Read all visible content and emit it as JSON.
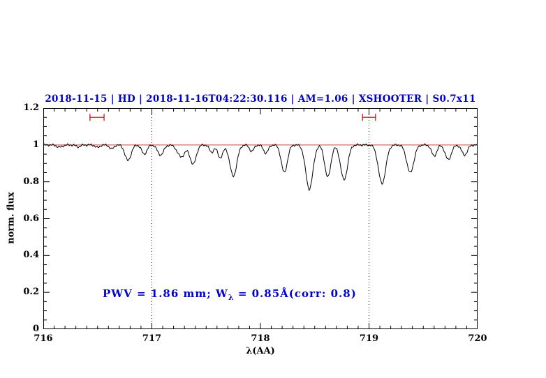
{
  "title": "2018-11-15 | HD | 2018-11-16T04:22:30.116 | AM=1.06 | XSHOOTER | S0.7x11",
  "annotation": {
    "prefix": "PWV = 1.86 mm; W",
    "subscript": "λ",
    "suffix": " = 0.85Å(corr: 0.8)"
  },
  "chart_data": {
    "type": "line",
    "title": "2018-11-15 | HD | 2018-11-16T04:22:30.116 | AM=1.06 | XSHOOTER | S0.7x11",
    "xlabel": "λ(AA)",
    "ylabel": "norm. flux",
    "xlim": [
      716,
      720
    ],
    "ylim": [
      0,
      1.2
    ],
    "xticks": [
      716,
      717,
      718,
      719,
      720
    ],
    "xtick_labels": [
      "716",
      "717",
      "718",
      "719",
      "720"
    ],
    "x_minor_step": 0.1,
    "yticks": [
      0,
      0.2,
      0.4,
      0.6,
      0.8,
      1,
      1.2
    ],
    "ytick_labels": [
      "0",
      "0.2",
      "0.4",
      "0.6",
      "0.8",
      "1",
      "1.2"
    ],
    "y_minor_step": 0.05,
    "grid": "off",
    "legend": "none",
    "line_color": "#000000",
    "continuum_level": 1.0,
    "continuum_color": "#cc4444",
    "marker_color": "#cc0000",
    "title_color": "#0000cc",
    "dotted_guides_x": [
      717,
      719
    ],
    "band_markers": [
      {
        "x_start": 716.43,
        "x_end": 716.56,
        "y": 1.15
      },
      {
        "x_start": 718.94,
        "x_end": 719.06,
        "y": 1.15
      }
    ],
    "noise_amplitude": 0.004,
    "sample_step_A": 0.008,
    "absorption_lines": {
      "columns": [
        "center_A",
        "depth",
        "sigma_A"
      ],
      "rows": [
        [
          716.15,
          0.012,
          0.025
        ],
        [
          716.32,
          0.01,
          0.02
        ],
        [
          716.5,
          0.014,
          0.02
        ],
        [
          716.63,
          0.022,
          0.02
        ],
        [
          716.78,
          0.085,
          0.028
        ],
        [
          716.93,
          0.05,
          0.024
        ],
        [
          717.08,
          0.055,
          0.028
        ],
        [
          717.27,
          0.065,
          0.035
        ],
        [
          717.38,
          0.105,
          0.028
        ],
        [
          717.55,
          0.04,
          0.02
        ],
        [
          717.63,
          0.07,
          0.024
        ],
        [
          717.75,
          0.17,
          0.032
        ],
        [
          717.92,
          0.035,
          0.02
        ],
        [
          718.05,
          0.045,
          0.022
        ],
        [
          718.22,
          0.15,
          0.028
        ],
        [
          718.45,
          0.24,
          0.033
        ],
        [
          718.62,
          0.175,
          0.028
        ],
        [
          718.77,
          0.19,
          0.032
        ],
        [
          719.12,
          0.21,
          0.034
        ],
        [
          719.38,
          0.15,
          0.033
        ],
        [
          719.6,
          0.06,
          0.024
        ],
        [
          719.73,
          0.08,
          0.028
        ],
        [
          719.88,
          0.055,
          0.026
        ]
      ]
    }
  }
}
